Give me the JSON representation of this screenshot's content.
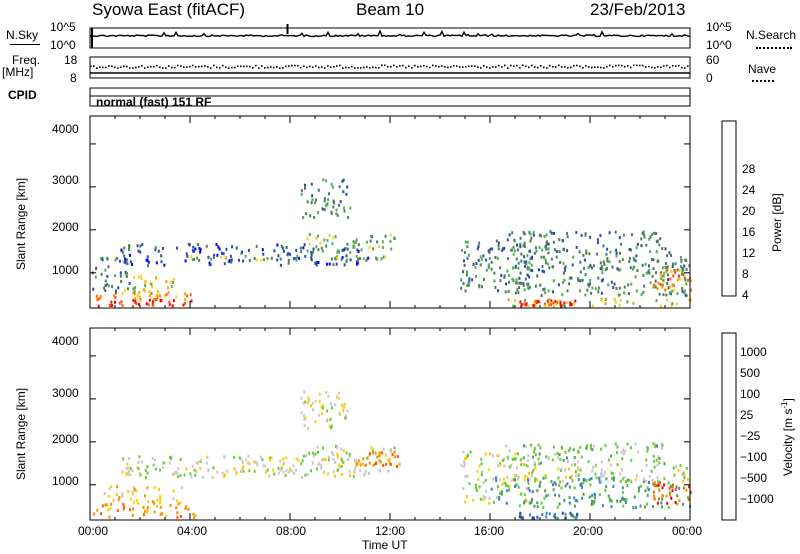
{
  "header": {
    "left_title": "Syowa East (fitACF)",
    "center_title": "Beam 10",
    "right_title": "23/Feb/2013"
  },
  "strip_panels": {
    "nsky_label": "N.Sky",
    "nsky_ticks": [
      "10^5",
      "10^0"
    ],
    "nsearch_label": "N.Search",
    "nsearch_ticks": [
      "10^5",
      "10^0"
    ],
    "freq_label": "Freq.",
    "freq_unit": "[MHz]",
    "freq_ticks": [
      "18",
      "8"
    ],
    "nave_label": "Nave",
    "nave_ticks": [
      "60",
      "0"
    ],
    "cpid_label": "CPID",
    "mode_text": "normal (fast) 151 RF"
  },
  "colors": {
    "power_scale": [
      "#0000ff",
      "#2a4ea6",
      "#4a7e5a",
      "#55aa55",
      "#f5d21a",
      "#ff9a00",
      "#ff5a00",
      "#ff0000"
    ],
    "velocity_scale": [
      "#2a4ea6",
      "#3a7ed6",
      "#4a9e5a",
      "#66cc33",
      "#c8c8c8",
      "#ffcc00",
      "#ff8c00",
      "#ff5a00",
      "#ff0000"
    ]
  },
  "chart_data": [
    {
      "type": "heatmap",
      "name": "power",
      "ylabel": "Slant Range [km]",
      "yticks": [
        "1000",
        "2000",
        "3000",
        "4000"
      ],
      "ylim": [
        180,
        4650
      ],
      "xlim": [
        0,
        24
      ],
      "colorbar_label": "Power [dB]",
      "colorbar_ticks": [
        "4",
        "8",
        "12",
        "16",
        "20",
        "24",
        "28"
      ],
      "bands": [
        {
          "t0": 0.0,
          "t1": 4.2,
          "r0": 250,
          "r1": 400,
          "level": 7
        },
        {
          "t0": 0.2,
          "t1": 4.0,
          "r0": 400,
          "r1": 560,
          "level": 5
        },
        {
          "t0": 1.2,
          "t1": 3.4,
          "r0": 560,
          "r1": 1000,
          "level": 4
        },
        {
          "t0": 0.0,
          "t1": 1.6,
          "r0": 600,
          "r1": 1400,
          "level": 2
        },
        {
          "t0": 1.2,
          "t1": 11.2,
          "r0": 1200,
          "r1": 1700,
          "level": 1
        },
        {
          "t0": 4.0,
          "t1": 12.0,
          "r0": 1330,
          "r1": 1420,
          "level": 3
        },
        {
          "t0": 8.6,
          "t1": 12.2,
          "r0": 1500,
          "r1": 1950,
          "level": 3
        },
        {
          "t0": 8.4,
          "t1": 10.4,
          "r0": 2300,
          "r1": 3200,
          "level": 2
        },
        {
          "t0": 14.8,
          "t1": 17.6,
          "r0": 600,
          "r1": 1800,
          "level": 2
        },
        {
          "t0": 16.0,
          "t1": 24.0,
          "r0": 500,
          "r1": 1200,
          "level": 2
        },
        {
          "t0": 17.0,
          "t1": 24.0,
          "r0": 1100,
          "r1": 1500,
          "level": 2
        },
        {
          "t0": 16.5,
          "t1": 23.0,
          "r0": 1500,
          "r1": 2000,
          "level": 2
        },
        {
          "t0": 17.1,
          "t1": 19.6,
          "r0": 250,
          "r1": 380,
          "level": 7
        },
        {
          "t0": 22.5,
          "t1": 24.0,
          "r0": 600,
          "r1": 1100,
          "level": 5
        },
        {
          "t0": 16.5,
          "t1": 24.0,
          "r0": 250,
          "r1": 420,
          "level": 4
        }
      ]
    },
    {
      "type": "heatmap",
      "name": "velocity",
      "ylabel": "Slant Range [km]",
      "yticks": [
        "1000",
        "2000",
        "3000",
        "4000"
      ],
      "ylim": [
        180,
        4650
      ],
      "xlim": [
        0,
        24
      ],
      "xticks": [
        "00:00",
        "04:00",
        "08:00",
        "12:00",
        "16:00",
        "20:00",
        "00:00"
      ],
      "xlabel": "Time UT",
      "colorbar_label": "Velocity [m s",
      "colorbar_label_sup": "-1",
      "colorbar_label_end": "]",
      "colorbar_ticks": [
        "1000",
        "500",
        "100",
        "25",
        "−25",
        "−100",
        "−500",
        "−1000"
      ],
      "bands": [
        {
          "t0": 0.0,
          "t1": 4.2,
          "r0": 250,
          "r1": 600,
          "level": 6
        },
        {
          "t0": 0.5,
          "t1": 3.8,
          "r0": 600,
          "r1": 1000,
          "level": 5
        },
        {
          "t0": 1.2,
          "t1": 11.2,
          "r0": 1200,
          "r1": 1700,
          "level": 4
        },
        {
          "t0": 4.0,
          "t1": 12.0,
          "r0": 1330,
          "r1": 1420,
          "level": 4
        },
        {
          "t0": 8.6,
          "t1": 12.2,
          "r0": 1500,
          "r1": 1950,
          "level": 4
        },
        {
          "t0": 8.4,
          "t1": 10.4,
          "r0": 2300,
          "r1": 3200,
          "level": 4
        },
        {
          "t0": 14.8,
          "t1": 17.6,
          "r0": 600,
          "r1": 1800,
          "level": 4
        },
        {
          "t0": 16.0,
          "t1": 24.0,
          "r0": 500,
          "r1": 1200,
          "level": 2
        },
        {
          "t0": 17.0,
          "t1": 24.0,
          "r0": 1100,
          "r1": 1500,
          "level": 4
        },
        {
          "t0": 16.5,
          "t1": 23.0,
          "r0": 1500,
          "r1": 2000,
          "level": 3
        },
        {
          "t0": 17.1,
          "t1": 19.6,
          "r0": 250,
          "r1": 380,
          "level": 1
        },
        {
          "t0": 22.5,
          "t1": 24.0,
          "r0": 600,
          "r1": 1100,
          "level": 7
        },
        {
          "t0": 10.6,
          "t1": 12.4,
          "r0": 1450,
          "r1": 1800,
          "level": 6
        }
      ]
    }
  ]
}
